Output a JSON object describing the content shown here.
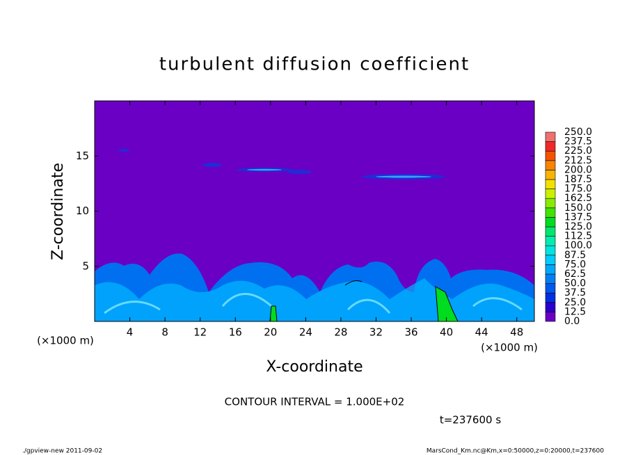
{
  "chart_data": {
    "type": "contour",
    "title": "turbulent diffusion coefficient",
    "x_label": "X-coordinate",
    "y_label": "Z-coordinate",
    "x_unit": "(×1000 m)",
    "xlim": [
      0,
      50
    ],
    "ylim": [
      0,
      20
    ],
    "xticks": [
      4,
      8,
      12,
      16,
      20,
      24,
      28,
      32,
      36,
      40,
      44,
      48
    ],
    "yticks": [
      5,
      10,
      15
    ],
    "colorbar": {
      "ticks": [
        {
          "value": 0,
          "label": "0.0"
        },
        {
          "value": 12.5,
          "label": "12.5"
        },
        {
          "value": 25,
          "label": "25.0"
        },
        {
          "value": 37.5,
          "label": "37.5"
        },
        {
          "value": 50,
          "label": "50.0"
        },
        {
          "value": 62.5,
          "label": "62.5"
        },
        {
          "value": 75,
          "label": "75.0"
        },
        {
          "value": 87.5,
          "label": "87.5"
        },
        {
          "value": 100,
          "label": "100.0"
        },
        {
          "value": 112.5,
          "label": "112.5"
        },
        {
          "value": 125,
          "label": "125.0"
        },
        {
          "value": 137.5,
          "label": "137.5"
        },
        {
          "value": 150,
          "label": "150.0"
        },
        {
          "value": 162.5,
          "label": "162.5"
        },
        {
          "value": 175,
          "label": "175.0"
        },
        {
          "value": 187.5,
          "label": "187.5"
        },
        {
          "value": 200,
          "label": "200.0"
        },
        {
          "value": 212.5,
          "label": "212.5"
        },
        {
          "value": 225,
          "label": "225.0"
        },
        {
          "value": 237.5,
          "label": "237.5"
        },
        {
          "value": 250,
          "label": "250.0"
        }
      ],
      "colors": [
        "#6a00c4",
        "#2a00d0",
        "#0030e0",
        "#0058ec",
        "#0080f4",
        "#00a8fc",
        "#00ccff",
        "#00e4e0",
        "#00ecb0",
        "#00e670",
        "#00dc20",
        "#40e400",
        "#88ec00",
        "#c8f000",
        "#f4e000",
        "#f8b400",
        "#f88400",
        "#f45400",
        "#f02828",
        "#f07070"
      ]
    },
    "contour_interval": "CONTOUR INTERVAL = 1.000E+02",
    "time_label": "t=237600 s",
    "footer_left": "./gpview-new  2011-09-02",
    "footer_right": "MarsCond_Km.nc@Km,x=0:50000,z=0:20000,t=237600"
  }
}
